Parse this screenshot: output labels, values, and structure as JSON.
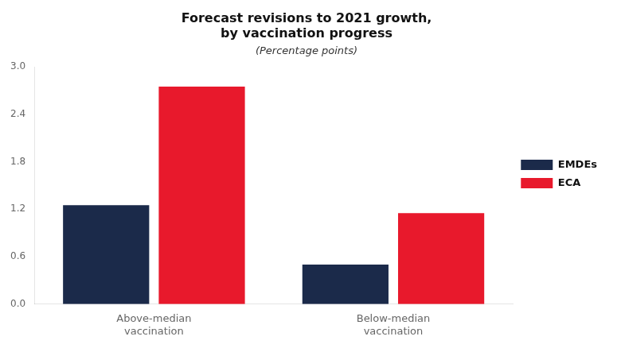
{
  "chart_data": {
    "type": "bar",
    "title": "Forecast revisions to 2021 growth,\nby vaccination progress",
    "subtitle": "(Percentage points)",
    "categories": [
      "Above-median\nvaccination",
      "Below-median\nvaccination"
    ],
    "series": [
      {
        "name": "EMDEs",
        "color": "#1b2a4a",
        "values": [
          1.25,
          0.5
        ]
      },
      {
        "name": "ECA",
        "color": "#e8192c",
        "values": [
          2.75,
          1.15
        ]
      }
    ],
    "ylim": [
      0.0,
      3.0
    ],
    "yticks": [
      {
        "value": 0,
        "label": "0.0"
      },
      0.6,
      1.2,
      1.8,
      2.4,
      {
        "value": 3,
        "label": "3.0"
      }
    ],
    "grid": false,
    "legend": "right"
  }
}
